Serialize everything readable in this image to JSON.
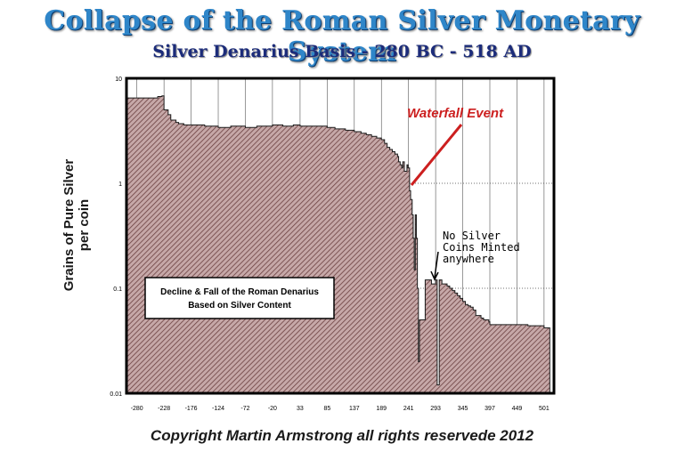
{
  "title": "Collapse of the Roman Silver Monetary System",
  "subtitle": "Silver Denarius Basis - 280 BC - 518 AD",
  "footer": "Copyright Martin Armstrong all rights reservede 2012",
  "colors": {
    "title": "#2f86c9",
    "subtitle": "#1c2c7a",
    "fill": "#c6a8a8",
    "hatch": "#6b4040",
    "waterfall": "#cc1f1f"
  },
  "chart_data": {
    "type": "area",
    "title": "Collapse of the Roman Silver Monetary System",
    "xlabel": "",
    "ylabel": "Grains of Pure Silver per coin",
    "yscale": "log",
    "grid": true,
    "xlim": [
      -300,
      520
    ],
    "ylim": [
      0.01,
      10
    ],
    "x_ticks": [
      "-280",
      "-228",
      "-176",
      "-124",
      "-72",
      "-20",
      "33",
      "85",
      "137",
      "189",
      "241",
      "293",
      "345",
      "397",
      "449",
      "501"
    ],
    "y_ticks": [
      "10",
      "1",
      "0.1",
      "0.01"
    ],
    "series": [
      {
        "x": [
          -300,
          -250,
          -240,
          -232,
          -228,
          -220,
          -215,
          -205,
          -200,
          -190,
          -176,
          -150,
          -124,
          -100,
          -80,
          -72,
          -50,
          -20,
          0,
          20,
          33,
          60,
          85,
          100,
          120,
          137,
          150,
          160,
          170,
          180,
          189,
          195,
          200,
          205,
          210,
          215,
          220,
          222,
          225,
          228,
          230,
          233,
          238,
          240,
          243,
          245,
          248,
          250,
          252,
          254,
          256,
          258,
          260,
          262,
          264,
          266,
          268,
          270,
          273,
          277,
          282,
          285,
          293,
          296,
          298,
          300,
          305,
          310,
          315,
          320,
          325,
          330,
          335,
          340,
          345,
          350,
          355,
          360,
          365,
          370,
          380,
          385,
          395,
          397,
          420,
          449,
          470,
          480,
          501,
          512
        ],
        "y": [
          6.5,
          6.5,
          6.7,
          6.8,
          5.0,
          4.5,
          4.0,
          3.8,
          3.7,
          3.6,
          3.6,
          3.5,
          3.4,
          3.5,
          3.5,
          3.4,
          3.5,
          3.6,
          3.5,
          3.6,
          3.5,
          3.5,
          3.4,
          3.3,
          3.2,
          3.1,
          3.0,
          2.9,
          2.8,
          2.7,
          2.6,
          2.4,
          2.2,
          2.1,
          2.0,
          1.9,
          1.8,
          1.6,
          1.5,
          1.4,
          1.6,
          1.3,
          1.5,
          1.4,
          0.85,
          0.7,
          0.5,
          0.3,
          0.15,
          0.5,
          0.3,
          0.1,
          0.02,
          0.05,
          0.05,
          0.05,
          0.05,
          0.05,
          0.12,
          0.12,
          0.12,
          0.11,
          0.12,
          0.012,
          0.012,
          0.12,
          0.11,
          0.11,
          0.105,
          0.1,
          0.095,
          0.09,
          0.085,
          0.08,
          0.075,
          0.07,
          0.068,
          0.066,
          0.062,
          0.055,
          0.052,
          0.05,
          0.048,
          0.045,
          0.045,
          0.045,
          0.044,
          0.044,
          0.042,
          0.042
        ]
      }
    ],
    "annotations": [
      {
        "text": "Waterfall Event",
        "x": 280,
        "y": 3.5
      },
      {
        "text": "No Silver",
        "x": 350,
        "y": 0.4
      },
      {
        "text": "Coins Minted",
        "x": 350,
        "y": 0.3
      },
      {
        "text": "anywhere",
        "x": 350,
        "y": 0.23
      }
    ],
    "box_text": [
      "Decline & Fall of the Roman Denarius",
      "Based on Silver Content"
    ]
  }
}
